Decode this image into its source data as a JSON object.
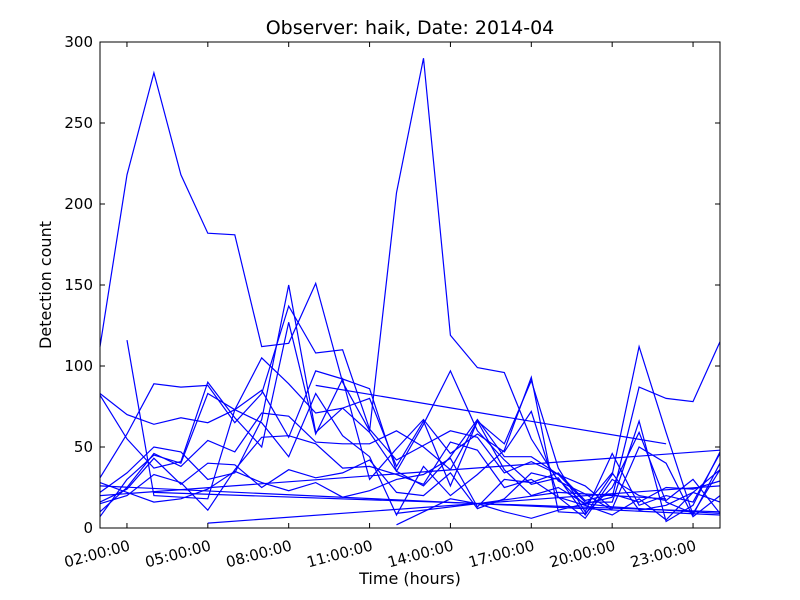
{
  "chart_data": {
    "type": "line",
    "title": "Observer: haik, Date: 2014-04",
    "xlabel": "Time (hours)",
    "ylabel": "Detection count",
    "xlim": [
      1,
      24
    ],
    "ylim": [
      0,
      300
    ],
    "x_ticks": [
      2,
      5,
      8,
      11,
      14,
      17,
      20,
      23
    ],
    "x_tick_labels": [
      "02:00:00",
      "05:00:00",
      "08:00:00",
      "11:00:00",
      "14:00:00",
      "17:00:00",
      "20:00:00",
      "23:00:00"
    ],
    "y_ticks": [
      0,
      50,
      100,
      150,
      200,
      250,
      300
    ],
    "y_tick_labels": [
      "0",
      "50",
      "100",
      "150",
      "200",
      "250",
      "300"
    ],
    "grid": false,
    "line_color": "#0000ff",
    "series": [
      {
        "x": [
          1,
          2,
          3,
          4,
          5,
          6,
          7,
          8,
          9,
          10,
          11,
          12,
          13,
          14,
          15,
          16,
          17,
          18,
          19,
          20
        ],
        "y": [
          112,
          218,
          281,
          218,
          182,
          181,
          112,
          114,
          151,
          90,
          60,
          207,
          290,
          119,
          99,
          96,
          55,
          29,
          21,
          11
        ]
      },
      {
        "x": [
          2,
          3,
          4,
          5,
          6,
          7,
          8,
          9,
          10,
          11,
          12,
          13,
          14,
          15,
          16,
          17,
          18,
          19,
          20,
          21,
          22,
          23,
          24
        ],
        "y": [
          116,
          20,
          19,
          18,
          73,
          105,
          89,
          71,
          74,
          59,
          35,
          64,
          97,
          60,
          42,
          27,
          31,
          8,
          33,
          112,
          59,
          8,
          40
        ]
      },
      {
        "x": [
          1,
          2,
          3,
          4,
          5,
          6,
          7,
          8,
          9,
          10,
          11,
          12,
          13,
          14,
          15,
          16,
          17,
          18,
          19,
          20,
          21,
          22,
          23,
          24
        ],
        "y": [
          83,
          70,
          64,
          68,
          65,
          73,
          85,
          56,
          97,
          92,
          86,
          35,
          26,
          44,
          67,
          44,
          44,
          33,
          16,
          16,
          66,
          4,
          14,
          47
        ]
      },
      {
        "x": [
          1,
          2,
          3,
          4,
          5,
          6,
          7,
          8,
          9,
          10,
          11,
          12,
          13,
          14,
          15,
          16,
          17,
          18,
          19,
          20,
          21,
          22,
          23,
          24
        ],
        "y": [
          82,
          55,
          37,
          41,
          90,
          68,
          50,
          127,
          58,
          92,
          30,
          49,
          67,
          46,
          58,
          47,
          72,
          19,
          6,
          30,
          20,
          17,
          30,
          9
        ]
      },
      {
        "x": [
          1,
          2,
          3,
          4,
          5,
          6,
          7,
          8,
          9,
          10,
          11,
          12,
          13,
          14,
          15,
          16,
          17,
          18,
          19,
          20,
          21,
          22,
          23,
          24
        ],
        "y": [
          31,
          58,
          89,
          87,
          88,
          65,
          83,
          137,
          108,
          110,
          61,
          42,
          51,
          60,
          56,
          34,
          41,
          33,
          26,
          12,
          50,
          40,
          7,
          20
        ]
      },
      {
        "x": [
          1,
          2,
          3,
          4,
          5,
          6,
          7,
          8,
          9,
          10,
          11,
          12,
          13,
          14,
          15,
          16,
          17,
          18,
          19,
          20,
          21,
          22,
          23,
          24
        ],
        "y": [
          22,
          34,
          50,
          47,
          30,
          34,
          67,
          150,
          59,
          74,
          80,
          38,
          66,
          26,
          66,
          36,
          20,
          25,
          15,
          19,
          87,
          80,
          78,
          115
        ]
      },
      {
        "x": [
          1,
          2,
          3,
          4,
          5,
          6,
          7,
          8,
          9,
          10,
          11,
          12,
          13,
          14,
          15,
          16,
          17,
          18,
          19,
          20,
          21,
          22,
          23,
          24
        ],
        "y": [
          7,
          30,
          45,
          40,
          83,
          73,
          65,
          44,
          83,
          57,
          44,
          8,
          38,
          20,
          33,
          48,
          93,
          10,
          9,
          25,
          59,
          16,
          9,
          36
        ]
      },
      {
        "x": [
          1,
          2,
          3,
          4,
          5,
          6,
          7,
          8,
          9,
          10,
          11,
          12,
          13,
          14,
          15,
          16,
          17,
          18,
          19,
          20,
          21,
          22,
          23,
          24
        ],
        "y": [
          10,
          25,
          46,
          38,
          54,
          47,
          71,
          69,
          53,
          52,
          52,
          60,
          50,
          36,
          66,
          52,
          91,
          37,
          10,
          46,
          14,
          20,
          16,
          46
        ]
      },
      {
        "x": [
          1,
          2,
          3,
          4,
          5,
          6,
          7,
          8,
          9,
          10,
          11,
          12,
          13,
          14,
          15,
          16,
          17,
          18,
          19,
          20,
          21,
          22,
          23,
          24
        ],
        "y": [
          16,
          24,
          43,
          27,
          40,
          39,
          25,
          36,
          31,
          34,
          42,
          22,
          20,
          34,
          12,
          18,
          34,
          30,
          14,
          8,
          18,
          5,
          22,
          36
        ]
      },
      {
        "x": [
          1,
          2,
          3,
          4,
          5,
          6,
          7,
          8,
          9,
          10,
          11,
          12,
          13,
          14,
          15,
          16,
          17,
          18,
          19,
          20,
          21,
          22,
          23,
          24
        ],
        "y": [
          15,
          20,
          33,
          28,
          11,
          36,
          56,
          57,
          52,
          37,
          38,
          33,
          27,
          53,
          48,
          25,
          30,
          19,
          14,
          34,
          11,
          14,
          22,
          16
        ]
      },
      {
        "x": [
          1,
          2,
          3,
          4,
          5,
          6,
          7,
          8,
          9,
          10,
          11,
          12,
          13,
          14,
          15,
          16,
          17,
          18,
          19,
          20,
          21,
          22,
          23,
          24
        ],
        "y": [
          28,
          22,
          16,
          18,
          24,
          35,
          28,
          23,
          28,
          19,
          23,
          30,
          33,
          43,
          13,
          30,
          28,
          34,
          17,
          21,
          16,
          25,
          24,
          29
        ]
      },
      {
        "x": [
          5,
          24
        ],
        "y": [
          3,
          26
        ]
      },
      {
        "x": [
          1,
          24
        ],
        "y": [
          26,
          8
        ]
      },
      {
        "x": [
          1,
          24
        ],
        "y": [
          20,
          48
        ]
      },
      {
        "x": [
          3,
          24
        ],
        "y": [
          22,
          10
        ]
      },
      {
        "x": [
          12,
          13,
          14,
          15,
          16,
          17,
          18,
          19,
          20,
          21,
          22,
          23,
          24
        ],
        "y": [
          2,
          10,
          18,
          15,
          10,
          6,
          11,
          15,
          13,
          12,
          11,
          10,
          9
        ]
      },
      {
        "x": [
          9,
          22
        ],
        "y": [
          88,
          52
        ]
      },
      {
        "x": [
          12,
          15,
          18,
          22
        ],
        "y": [
          9,
          15,
          22,
          18
        ]
      }
    ]
  }
}
